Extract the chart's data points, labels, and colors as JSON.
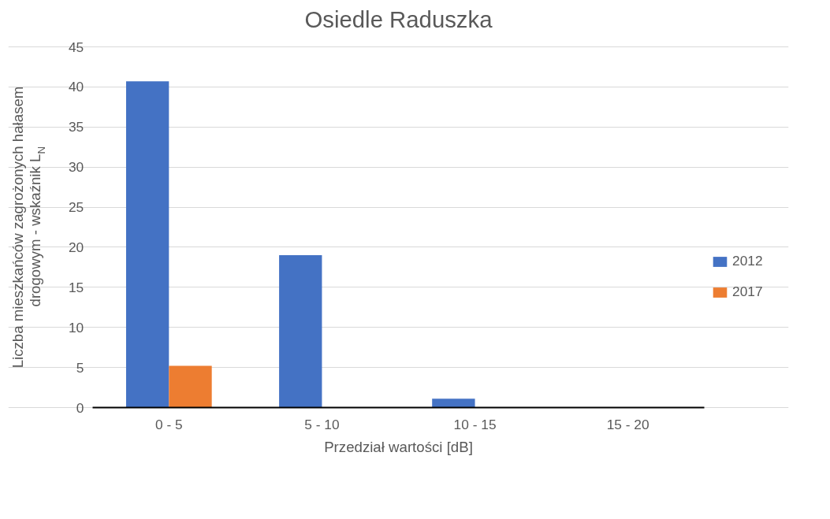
{
  "chart_data": {
    "type": "bar",
    "title": "Osiedle Raduszka",
    "xlabel": "Przedział wartości [dB]",
    "ylabel": "Liczba mieszkańców zagrożonych hałasem\ndrogowym - wskaźnik L$_{N}$",
    "categories": [
      "0 - 5",
      "5 - 10",
      "10 - 15",
      "15 - 20"
    ],
    "series": [
      {
        "name": "2012",
        "color": "#4472c4",
        "values": [
          40.7,
          19.0,
          1.1,
          0
        ]
      },
      {
        "name": "2017",
        "color": "#ed7d31",
        "values": [
          5.2,
          0,
          0,
          0
        ]
      }
    ],
    "ylim": [
      0,
      45
    ],
    "yticks": [
      0,
      5,
      10,
      15,
      20,
      25,
      30,
      35,
      40,
      45
    ],
    "grid": "y",
    "legend": "right"
  }
}
